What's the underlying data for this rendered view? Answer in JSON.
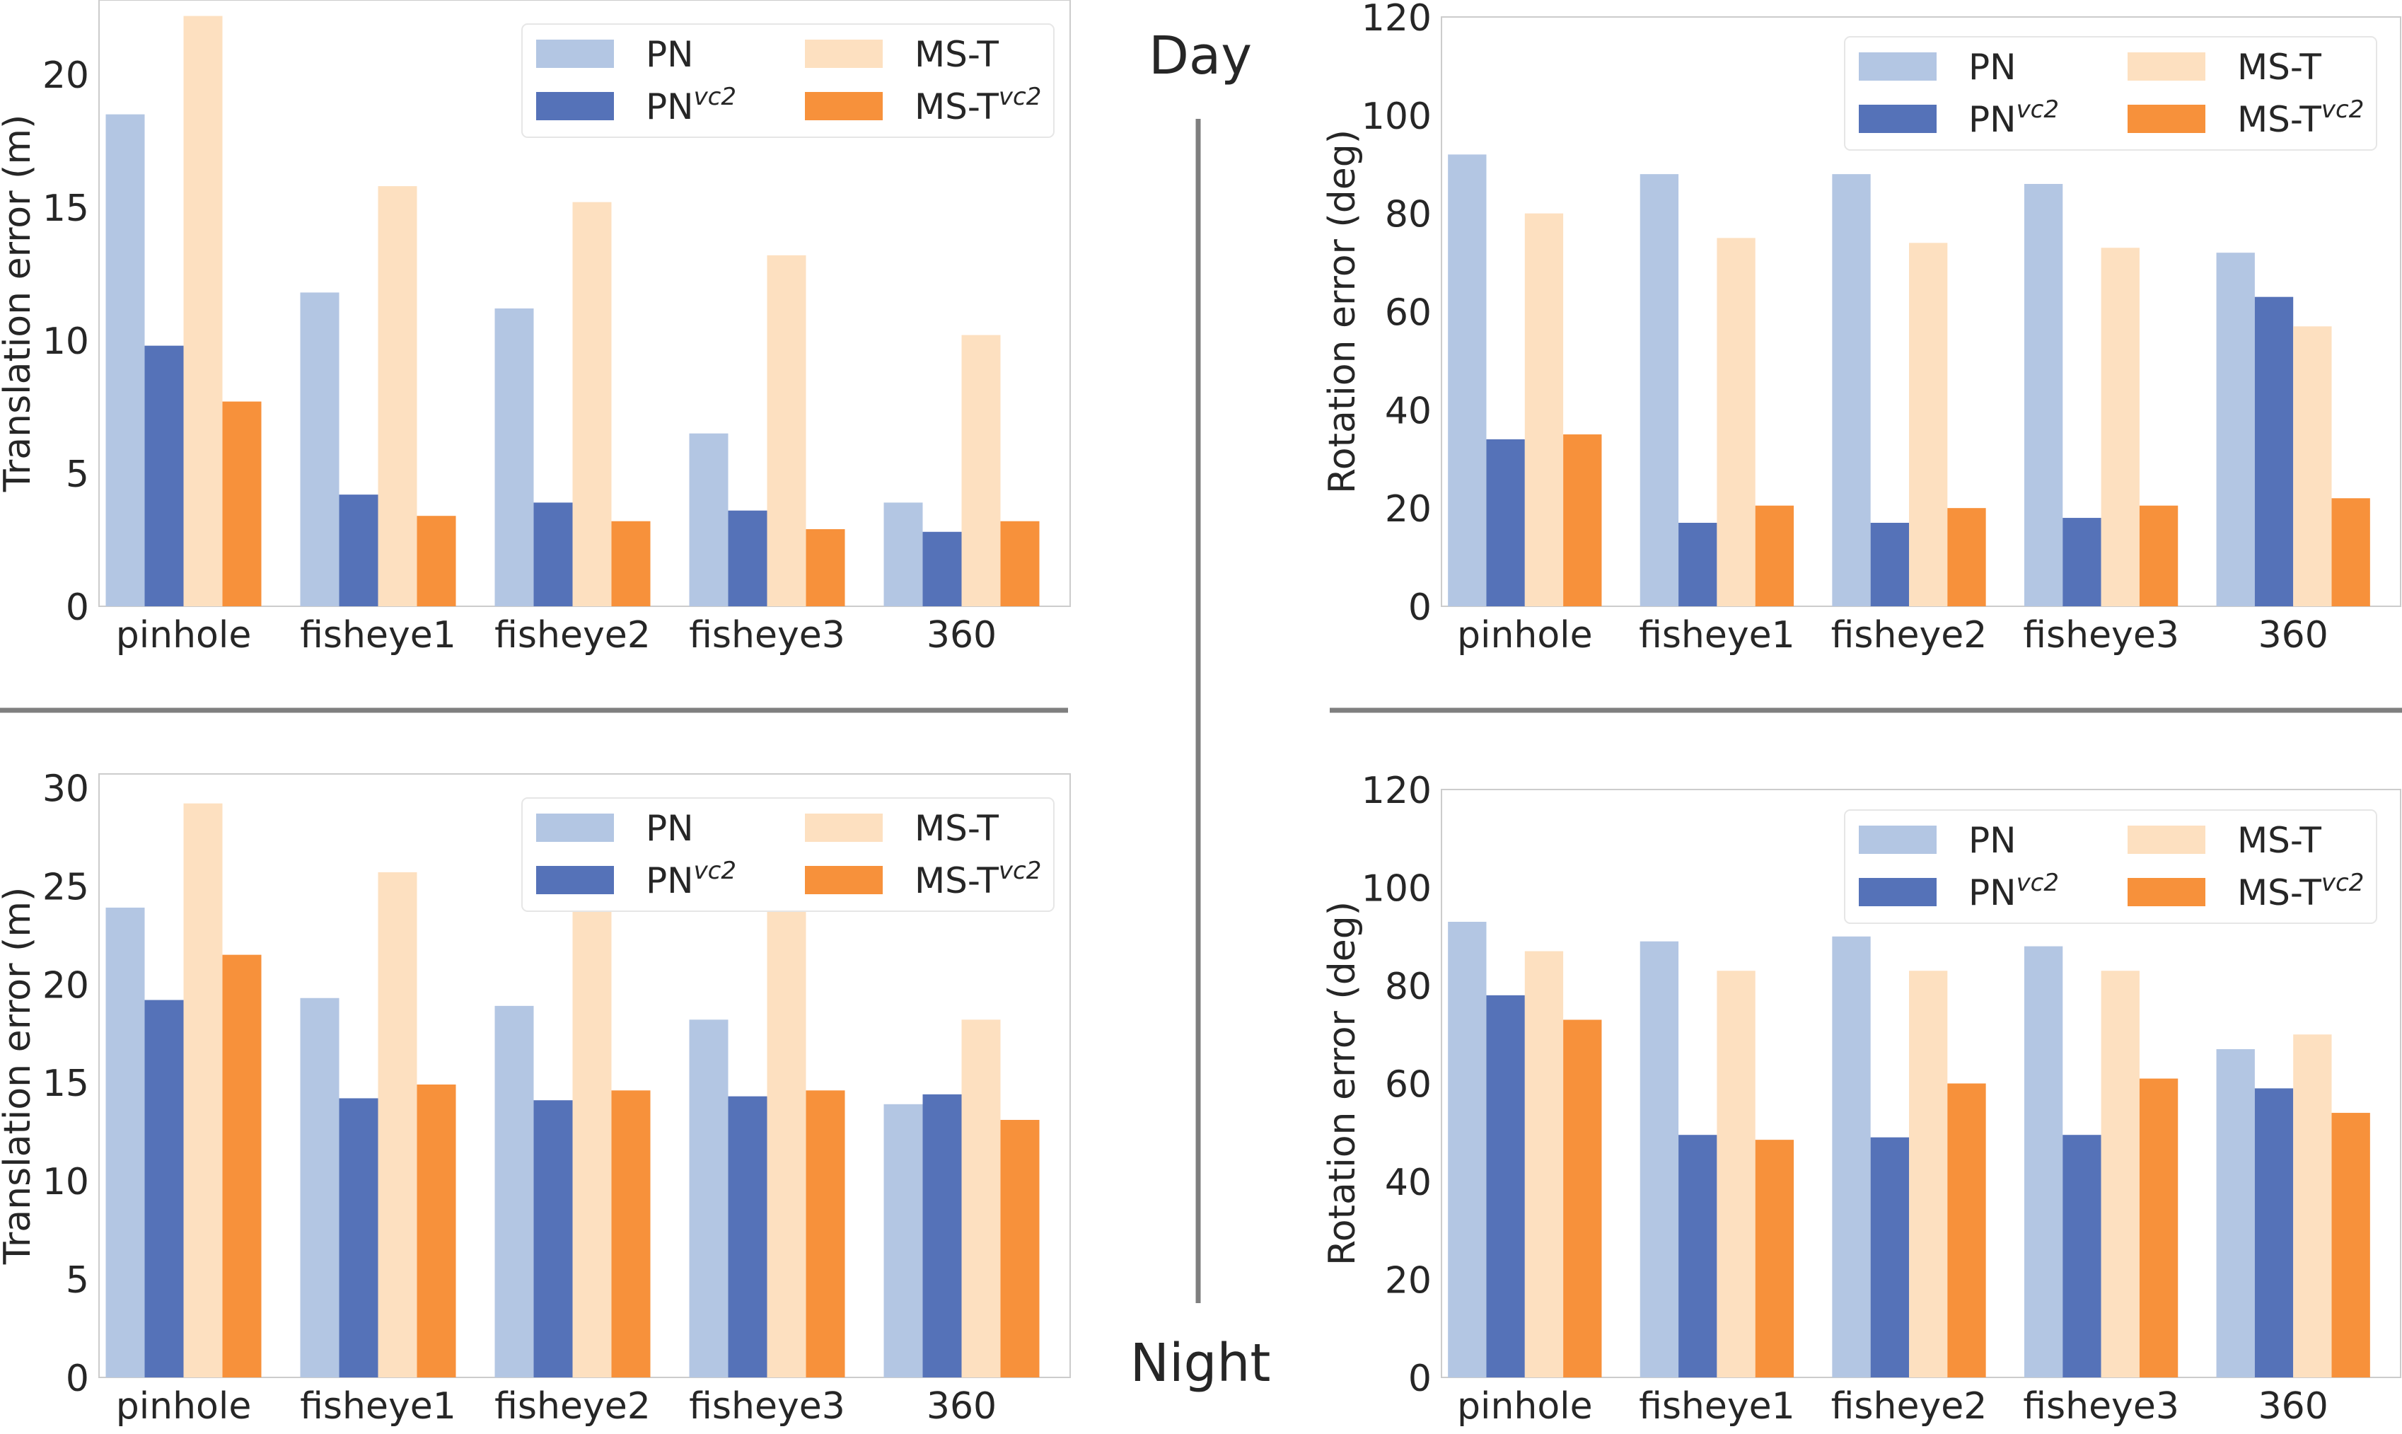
{
  "labels": {
    "day": "Day",
    "night": "Night"
  },
  "colors": {
    "PN": "#b3c6e3",
    "PN_vc2": "#5572b8",
    "MS_T": "#fde0c0",
    "MS_T_vc2": "#f7913b",
    "divider": "#7f7f7f"
  },
  "legend": [
    {
      "key": "PN",
      "base": "PN",
      "sup": ""
    },
    {
      "key": "MS_T",
      "base": "MS-T",
      "sup": ""
    },
    {
      "key": "PN_vc2",
      "base": "PN",
      "sup": "vc2"
    },
    {
      "key": "MS_T_vc2",
      "base": "MS-T",
      "sup": "vc2"
    }
  ],
  "chart_data": [
    {
      "id": "day-translation",
      "type": "bar",
      "xlabel": "",
      "ylabel": "Translation error (m)",
      "ylim": [
        0,
        22.8
      ],
      "yticks": [
        0,
        5,
        10,
        15,
        20
      ],
      "grid": false,
      "legend_position": "top-right",
      "categories": [
        "pinhole",
        "fisheye1",
        "fisheye2",
        "fisheye3",
        "360"
      ],
      "series": [
        {
          "key": "PN",
          "values": [
            18.5,
            11.8,
            11.2,
            6.5,
            3.9
          ]
        },
        {
          "key": "PN_vc2",
          "values": [
            9.8,
            4.2,
            3.9,
            3.6,
            2.8
          ]
        },
        {
          "key": "MS_T",
          "values": [
            22.2,
            15.8,
            15.2,
            13.2,
            10.2
          ]
        },
        {
          "key": "MS_T_vc2",
          "values": [
            7.7,
            3.4,
            3.2,
            2.9,
            3.2
          ]
        }
      ]
    },
    {
      "id": "day-rotation",
      "type": "bar",
      "xlabel": "",
      "ylabel": "Rotation error (deg)",
      "ylim": [
        0,
        120
      ],
      "yticks": [
        0,
        20,
        40,
        60,
        80,
        100,
        120
      ],
      "grid": false,
      "legend_position": "top-right",
      "categories": [
        "pinhole",
        "fisheye1",
        "fisheye2",
        "fisheye3",
        "360"
      ],
      "series": [
        {
          "key": "PN",
          "values": [
            92,
            88,
            88,
            86,
            72
          ]
        },
        {
          "key": "PN_vc2",
          "values": [
            34,
            17,
            17,
            18,
            63
          ]
        },
        {
          "key": "MS_T",
          "values": [
            80,
            75,
            74,
            73,
            57
          ]
        },
        {
          "key": "MS_T_vc2",
          "values": [
            35,
            20.5,
            20,
            20.5,
            22
          ]
        }
      ]
    },
    {
      "id": "night-translation",
      "type": "bar",
      "xlabel": "",
      "ylabel": "Translation error (m)",
      "ylim": [
        0,
        30.7
      ],
      "yticks": [
        0,
        5,
        10,
        15,
        20,
        25,
        30
      ],
      "grid": false,
      "legend_position": "top-right",
      "categories": [
        "pinhole",
        "fisheye1",
        "fisheye2",
        "fisheye3",
        "360"
      ],
      "series": [
        {
          "key": "PN",
          "values": [
            23.9,
            19.3,
            18.9,
            18.2,
            13.9
          ]
        },
        {
          "key": "PN_vc2",
          "values": [
            19.2,
            14.2,
            14.1,
            14.3,
            14.4
          ]
        },
        {
          "key": "MS_T",
          "values": [
            29.2,
            25.7,
            23.8,
            25.0,
            18.2
          ]
        },
        {
          "key": "MS_T_vc2",
          "values": [
            21.5,
            14.9,
            14.6,
            14.6,
            13.1
          ]
        }
      ]
    },
    {
      "id": "night-rotation",
      "type": "bar",
      "xlabel": "",
      "ylabel": "Rotation error (deg)",
      "ylim": [
        0,
        120
      ],
      "yticks": [
        0,
        20,
        40,
        60,
        80,
        100,
        120
      ],
      "grid": false,
      "legend_position": "top-right",
      "categories": [
        "pinhole",
        "fisheye1",
        "fisheye2",
        "fisheye3",
        "360"
      ],
      "series": [
        {
          "key": "PN",
          "values": [
            93,
            89,
            90,
            88,
            67
          ]
        },
        {
          "key": "PN_vc2",
          "values": [
            78,
            49.5,
            49,
            49.5,
            59
          ]
        },
        {
          "key": "MS_T",
          "values": [
            87,
            83,
            83,
            83,
            70
          ]
        },
        {
          "key": "MS_T_vc2",
          "values": [
            73,
            48.5,
            60,
            61,
            54
          ]
        }
      ]
    }
  ]
}
